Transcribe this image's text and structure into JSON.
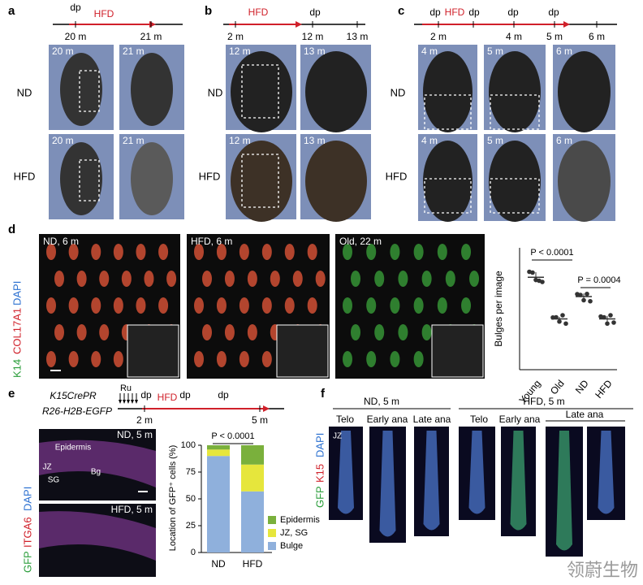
{
  "panels": {
    "a": {
      "label": "a",
      "timeline": [
        "dp",
        "HFD"
      ],
      "ticks": [
        "20 m",
        "21 m"
      ],
      "rows": [
        "ND",
        "HFD"
      ],
      "photos": [
        "20 m",
        "21 m",
        "20 m",
        "21 m"
      ]
    },
    "b": {
      "label": "b",
      "timeline": [
        "HFD",
        "dp"
      ],
      "ticks": [
        "2 m",
        "12 m",
        "13 m"
      ],
      "rows": [
        "ND",
        "HFD"
      ],
      "photos": [
        "12 m",
        "13 m",
        "12 m",
        "13 m"
      ]
    },
    "c": {
      "label": "c",
      "timeline": [
        "dp",
        "HFD",
        "dp",
        "dp",
        "dp"
      ],
      "ticks": [
        "2 m",
        "4 m",
        "5 m",
        "6 m"
      ],
      "rows": [
        "ND",
        "HFD"
      ],
      "photos": [
        "4 m",
        "5 m",
        "6 m",
        "4 m",
        "5 m",
        "6 m"
      ]
    },
    "d": {
      "label": "d",
      "stain": [
        "K14",
        "COL17A1",
        "DAPI"
      ],
      "images": [
        "ND, 6 m",
        "HFD, 6 m",
        "Old, 22 m"
      ]
    },
    "e": {
      "label": "e",
      "genotype": [
        "K15CrePR",
        "R26-H2B-EGFP"
      ],
      "treatment": "Ru",
      "timeline": [
        "dp",
        "HFD",
        "dp",
        "dp"
      ],
      "ticks": [
        "2 m",
        "5 m"
      ],
      "stain": [
        "GFP",
        "ITGA6",
        "DAPI"
      ],
      "images": [
        "ND, 5 m",
        "HFD, 5 m"
      ],
      "annotations": [
        "Epidermis",
        "JZ",
        "SG",
        "Bg"
      ]
    },
    "f": {
      "label": "f",
      "groups": [
        "ND, 5 m",
        "HFD, 5 m"
      ],
      "columns": [
        "Telo",
        "Early ana",
        "Late ana",
        "Telo",
        "Early ana",
        "Late ana"
      ],
      "annotation": "JZ",
      "stain": [
        "GFP",
        "K15",
        "DAPI"
      ]
    }
  },
  "chart_data": [
    {
      "type": "scatter",
      "ylabel": "Bulges per image",
      "categories": [
        "Young",
        "Old",
        "ND",
        "HFD"
      ],
      "points": [
        [
          98,
          94,
          90,
          86,
          88
        ],
        [
          53,
          50,
          49,
          52,
          47
        ],
        [
          76,
          72,
          70,
          73,
          69
        ],
        [
          54,
          50,
          47,
          52,
          48
        ]
      ],
      "means": [
        91,
        50,
        72,
        50
      ],
      "sd": [
        5,
        2,
        3,
        3
      ],
      "ylim": [
        0,
        120
      ],
      "color": "#333333",
      "annotations": [
        "P < 0.0001",
        "P = 0.0004"
      ]
    },
    {
      "type": "bar",
      "stacked": true,
      "ylabel": "Location of GFP⁺ cells (%)",
      "categories": [
        "ND",
        "HFD"
      ],
      "series": [
        {
          "name": "Bulge",
          "color": "#8fb0dc",
          "values": [
            90,
            57
          ]
        },
        {
          "name": "JZ, SG",
          "color": "#e6e63c",
          "values": [
            6,
            25
          ]
        },
        {
          "name": "Epidermis",
          "color": "#7ab03c",
          "values": [
            4,
            18
          ]
        }
      ],
      "ylim": [
        0,
        100
      ],
      "yticks": [
        0,
        25,
        50,
        75,
        100
      ],
      "annotations": [
        "P < 0.0001"
      ]
    }
  ],
  "watermark": "领蔚生物"
}
